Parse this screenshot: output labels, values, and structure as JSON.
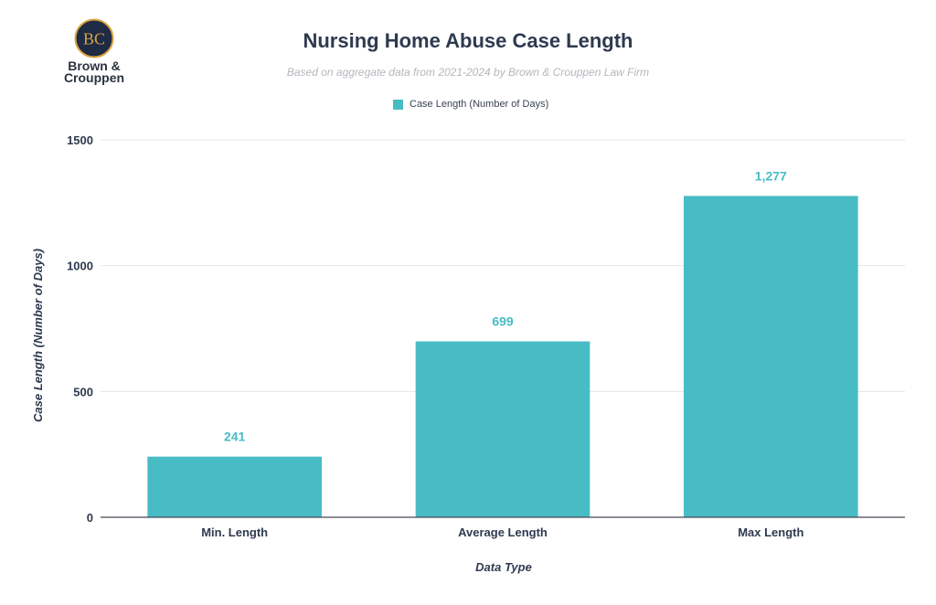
{
  "logo": {
    "monogram": "BC",
    "name_line1": "Brown &",
    "name_line2": "Crouppen"
  },
  "colors": {
    "bar": "#48bcc5",
    "text_dark": "#2e3a4f",
    "subtitle": "#b3b7bd",
    "gridline": "#e3e5e8",
    "axis_line": "#444a55",
    "logo_circle": "#1f2a44",
    "logo_ring": "#d9a441"
  },
  "chart_data": {
    "type": "bar",
    "title": "Nursing Home Abuse Case Length",
    "subtitle": "Based on aggregate data from 2021-2024 by Brown & Crouppen Law Firm",
    "xlabel": "Data Type",
    "ylabel": "Case Length (Number of Days)",
    "categories": [
      "Min. Length",
      "Average Length",
      "Max Length"
    ],
    "series": [
      {
        "name": "Case Length (Number of Days)",
        "values": [
          241,
          699,
          1277
        ],
        "data_labels": [
          "241",
          "699",
          "1,277"
        ]
      }
    ],
    "ylim": [
      0,
      1500
    ],
    "yticks": [
      0,
      500,
      1000,
      1500
    ],
    "grid": true,
    "legend_position": "top-center"
  }
}
